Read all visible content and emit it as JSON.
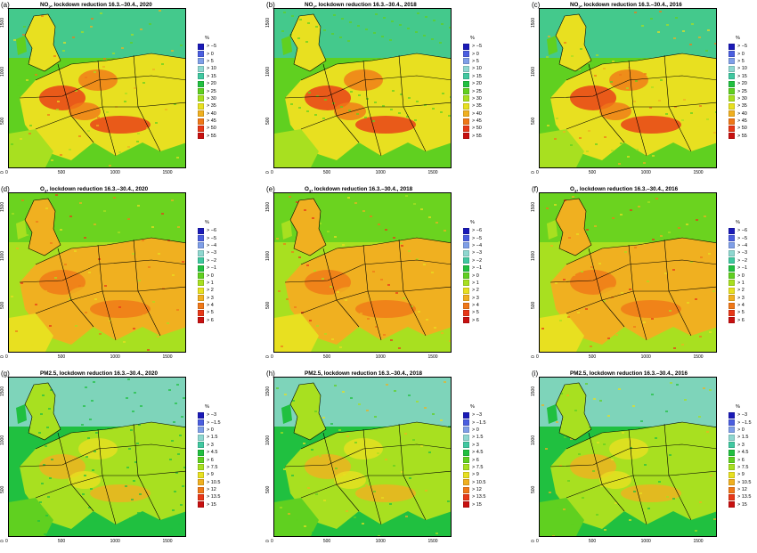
{
  "panels": [
    {
      "letter": "(a)",
      "title_main": "NO",
      "title_sub": "2",
      "title_rest": ", lockdown reduction 16.3.–30.4., 2020",
      "scheme": "no2"
    },
    {
      "letter": "(b)",
      "title_main": "NO",
      "title_sub": "2",
      "title_rest": ", lockdown reduction 16.3.–30.4., 2018",
      "scheme": "no2"
    },
    {
      "letter": "(c)",
      "title_main": "NO",
      "title_sub": "2",
      "title_rest": ", lockdown reduction 16.3.–30.4., 2016",
      "scheme": "no2"
    },
    {
      "letter": "(d)",
      "title_main": "O",
      "title_sub": "3",
      "title_rest": ", lockdown reduction 16.3.–30.4., 2020",
      "scheme": "o3"
    },
    {
      "letter": "(e)",
      "title_main": "O",
      "title_sub": "3",
      "title_rest": ", lockdown reduction 16.3.–30.4., 2018",
      "scheme": "o3"
    },
    {
      "letter": "(f)",
      "title_main": "O",
      "title_sub": "3",
      "title_rest": ", lockdown reduction 16.3.–30.4., 2016",
      "scheme": "o3"
    },
    {
      "letter": "(g)",
      "title_main": "PM2.5",
      "title_sub": "",
      "title_rest": ", lockdown reduction 16.3.–30.4., 2020",
      "scheme": "pm"
    },
    {
      "letter": "(h)",
      "title_main": "PM2.5",
      "title_sub": "",
      "title_rest": ", lockdown reduction 16.3.–30.4., 2018",
      "scheme": "pm"
    },
    {
      "letter": "(i)",
      "title_main": "PM2.5",
      "title_sub": "",
      "title_rest": ", lockdown reduction 16.3.–30.4., 2016",
      "scheme": "pm"
    }
  ],
  "legend_unit": "%",
  "legends": {
    "no2": [
      "> −5",
      "> 0",
      "> 5",
      "> 10",
      "> 15",
      "> 20",
      "> 25",
      "> 30",
      "> 35",
      "> 40",
      "> 45",
      "> 50",
      "> 55"
    ],
    "o3": [
      "> −6",
      "> −5",
      "> −4",
      "> −3",
      "> −2",
      "> −1",
      "> 0",
      "> 1",
      "> 2",
      "> 3",
      "> 4",
      "> 5",
      "> 6"
    ],
    "pm": [
      "> −3",
      "> −1.5",
      "> 0",
      "> 1.5",
      "> 3",
      "> 4.5",
      "> 6",
      "> 7.5",
      "> 9",
      "> 10.5",
      "> 12",
      "> 13.5",
      "> 15"
    ]
  },
  "legend_colors": [
    "#1a1ab8",
    "#4a5ee0",
    "#7f9fe8",
    "#8fd7d0",
    "#40c8a0",
    "#20c040",
    "#60d020",
    "#a8e020",
    "#e8e020",
    "#f0b020",
    "#f07818",
    "#e83818",
    "#c81010"
  ],
  "x_ticks": [
    "0",
    "500",
    "1000",
    "1500"
  ],
  "y_ticks": [
    "0",
    "500",
    "1000",
    "1500"
  ],
  "x_range": [
    0,
    1700
  ],
  "y_range": [
    0,
    1650
  ]
}
